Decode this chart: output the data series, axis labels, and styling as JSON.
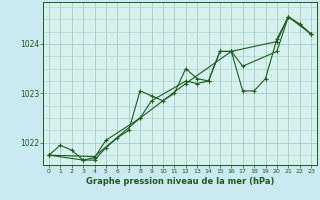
{
  "title": "Graphe pression niveau de la mer (hPa)",
  "bg_color": "#cbe9f0",
  "plot_bg_color": "#d8f0ee",
  "line_color": "#1a5e1a",
  "grid_color": "#9ecfca",
  "xlim": [
    -0.5,
    23.5
  ],
  "ylim": [
    1021.55,
    1024.85
  ],
  "yticks": [
    1022,
    1023,
    1024
  ],
  "xticks": [
    0,
    1,
    2,
    3,
    4,
    5,
    6,
    7,
    8,
    9,
    10,
    11,
    12,
    13,
    14,
    15,
    16,
    17,
    18,
    19,
    20,
    21,
    22,
    23
  ],
  "series1": [
    [
      0,
      1021.75
    ],
    [
      1,
      1021.95
    ],
    [
      2,
      1021.85
    ],
    [
      3,
      1021.65
    ],
    [
      4,
      1021.65
    ],
    [
      5,
      1021.9
    ],
    [
      6,
      1022.1
    ],
    [
      7,
      1022.25
    ],
    [
      8,
      1023.05
    ],
    [
      9,
      1022.95
    ],
    [
      10,
      1022.85
    ],
    [
      11,
      1023.0
    ],
    [
      12,
      1023.5
    ],
    [
      13,
      1023.3
    ],
    [
      14,
      1023.25
    ],
    [
      15,
      1023.85
    ],
    [
      16,
      1023.85
    ],
    [
      17,
      1023.05
    ],
    [
      18,
      1023.05
    ],
    [
      19,
      1023.3
    ],
    [
      20,
      1024.1
    ],
    [
      21,
      1024.55
    ],
    [
      22,
      1024.4
    ],
    [
      23,
      1024.2
    ]
  ],
  "series2": [
    [
      0,
      1021.75
    ],
    [
      3,
      1021.65
    ],
    [
      4,
      1021.7
    ],
    [
      5,
      1022.05
    ],
    [
      8,
      1022.5
    ],
    [
      9,
      1022.85
    ],
    [
      12,
      1023.25
    ],
    [
      13,
      1023.2
    ],
    [
      14,
      1023.25
    ],
    [
      15,
      1023.85
    ],
    [
      16,
      1023.85
    ],
    [
      17,
      1023.55
    ],
    [
      20,
      1023.85
    ],
    [
      21,
      1024.55
    ],
    [
      23,
      1024.2
    ]
  ],
  "series3": [
    [
      0,
      1021.75
    ],
    [
      4,
      1021.72
    ],
    [
      8,
      1022.5
    ],
    [
      12,
      1023.2
    ],
    [
      16,
      1023.85
    ],
    [
      20,
      1024.05
    ],
    [
      21,
      1024.55
    ],
    [
      22,
      1024.4
    ],
    [
      23,
      1024.2
    ]
  ]
}
